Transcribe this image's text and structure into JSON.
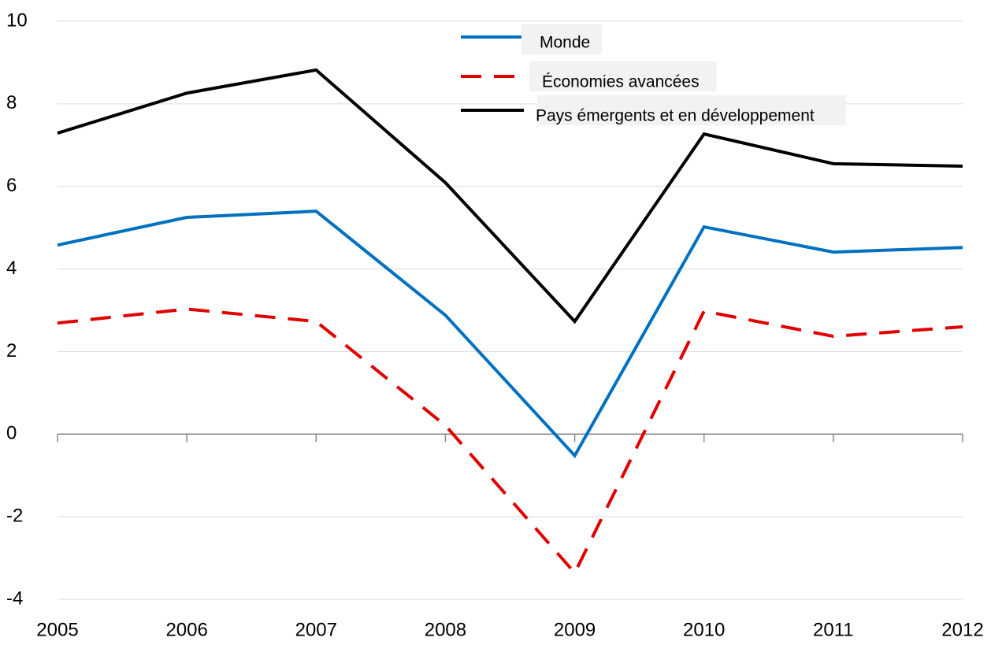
{
  "chart_data": {
    "type": "line",
    "x": [
      2005,
      2006,
      2007,
      2008,
      2009,
      2010,
      2011,
      2012
    ],
    "xlim": [
      2005,
      2012
    ],
    "xticks": [
      2005,
      2006,
      2007,
      2008,
      2009,
      2010,
      2011,
      2012
    ],
    "ylim": [
      -4,
      10
    ],
    "yticks": [
      -4,
      -2,
      0,
      2,
      4,
      6,
      8,
      10
    ],
    "grid": true,
    "legend": "top",
    "series": [
      {
        "name": "Monde",
        "color": "#0070c0",
        "dash": false,
        "values": [
          4.58,
          5.25,
          5.4,
          2.88,
          -0.52,
          5.02,
          4.41,
          4.52
        ]
      },
      {
        "name": "Économies avancées",
        "color": "#e00000",
        "dash": true,
        "values": [
          2.69,
          3.03,
          2.73,
          0.21,
          -3.36,
          2.98,
          2.37,
          2.6
        ]
      },
      {
        "name": "Pays émergents et en développement",
        "color": "#000000",
        "dash": false,
        "values": [
          7.29,
          8.26,
          8.82,
          6.09,
          2.73,
          7.27,
          6.55,
          6.49
        ]
      }
    ]
  }
}
